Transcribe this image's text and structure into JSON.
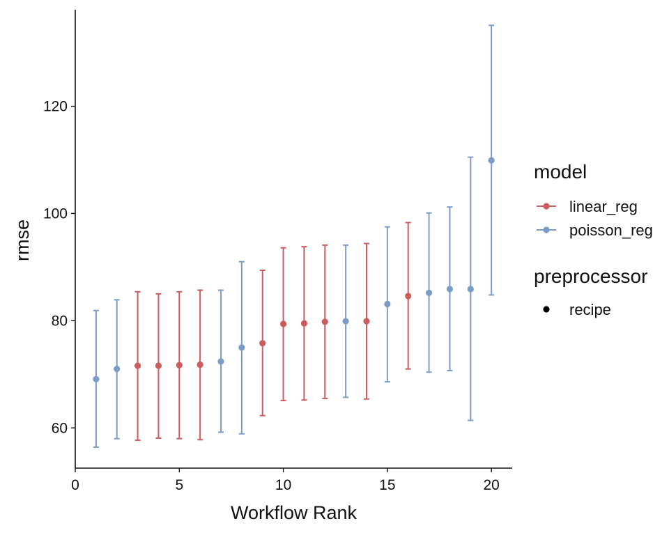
{
  "chart_data": {
    "type": "scatter",
    "xlabel": "Workflow Rank",
    "ylabel": "rmse",
    "xlim": [
      0,
      21
    ],
    "ylim": [
      52.5,
      138
    ],
    "x_ticks": [
      0,
      5,
      10,
      15,
      20
    ],
    "y_ticks": [
      60,
      80,
      100,
      120
    ],
    "grid": false,
    "legend_placement": "right",
    "points": [
      {
        "rank": 1,
        "model": "poisson_reg",
        "mean": 69.1,
        "lower": 56.4,
        "upper": 81.9
      },
      {
        "rank": 2,
        "model": "poisson_reg",
        "mean": 71.0,
        "lower": 58.0,
        "upper": 83.9
      },
      {
        "rank": 3,
        "model": "linear_reg",
        "mean": 71.6,
        "lower": 57.7,
        "upper": 85.4
      },
      {
        "rank": 4,
        "model": "linear_reg",
        "mean": 71.6,
        "lower": 58.1,
        "upper": 85.0
      },
      {
        "rank": 5,
        "model": "linear_reg",
        "mean": 71.7,
        "lower": 58.0,
        "upper": 85.4
      },
      {
        "rank": 6,
        "model": "linear_reg",
        "mean": 71.8,
        "lower": 57.8,
        "upper": 85.7
      },
      {
        "rank": 7,
        "model": "poisson_reg",
        "mean": 72.4,
        "lower": 59.2,
        "upper": 85.7
      },
      {
        "rank": 8,
        "model": "poisson_reg",
        "mean": 75.0,
        "lower": 58.9,
        "upper": 91.0
      },
      {
        "rank": 9,
        "model": "linear_reg",
        "mean": 75.8,
        "lower": 62.3,
        "upper": 89.4
      },
      {
        "rank": 10,
        "model": "linear_reg",
        "mean": 79.4,
        "lower": 65.1,
        "upper": 93.6
      },
      {
        "rank": 11,
        "model": "linear_reg",
        "mean": 79.5,
        "lower": 65.2,
        "upper": 93.8
      },
      {
        "rank": 12,
        "model": "linear_reg",
        "mean": 79.8,
        "lower": 65.5,
        "upper": 94.1
      },
      {
        "rank": 13,
        "model": "poisson_reg",
        "mean": 79.9,
        "lower": 65.7,
        "upper": 94.1
      },
      {
        "rank": 14,
        "model": "linear_reg",
        "mean": 79.9,
        "lower": 65.4,
        "upper": 94.4
      },
      {
        "rank": 15,
        "model": "poisson_reg",
        "mean": 83.1,
        "lower": 68.6,
        "upper": 97.5
      },
      {
        "rank": 16,
        "model": "linear_reg",
        "mean": 84.6,
        "lower": 71.0,
        "upper": 98.3
      },
      {
        "rank": 17,
        "model": "poisson_reg",
        "mean": 85.2,
        "lower": 70.4,
        "upper": 100.1
      },
      {
        "rank": 18,
        "model": "poisson_reg",
        "mean": 85.9,
        "lower": 70.7,
        "upper": 101.2
      },
      {
        "rank": 19,
        "model": "poisson_reg",
        "mean": 85.9,
        "lower": 61.4,
        "upper": 110.5
      },
      {
        "rank": 20,
        "model": "poisson_reg",
        "mean": 109.9,
        "lower": 84.8,
        "upper": 135.1
      }
    ],
    "legend": {
      "model_title": "model",
      "model_items": [
        {
          "key": "linear_reg",
          "label": "linear_reg",
          "color": "#CD5C5C"
        },
        {
          "key": "poisson_reg",
          "label": "poisson_reg",
          "color": "#7A9CC6"
        }
      ],
      "preprocessor_title": "preprocessor",
      "preprocessor_items": [
        {
          "label": "recipe",
          "color": "#000000"
        }
      ]
    }
  }
}
